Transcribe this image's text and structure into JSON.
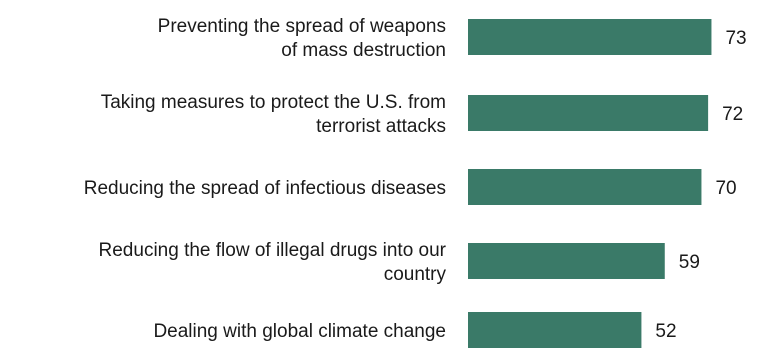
{
  "chart_data": {
    "type": "bar",
    "orientation": "horizontal",
    "categories": [
      [
        "Preventing the spread of weapons",
        "of mass destruction"
      ],
      [
        "Taking measures to protect the U.S. from",
        "terrorist attacks"
      ],
      [
        "Reducing the spread of infectious diseases"
      ],
      [
        "Reducing the flow of illegal drugs into our",
        "country"
      ],
      [
        "Dealing with global climate change"
      ]
    ],
    "values": [
      73,
      72,
      70,
      59,
      52
    ],
    "value_labels": [
      "73",
      "72",
      "70",
      "59",
      "52"
    ],
    "title": "",
    "xlabel": "",
    "ylabel": "",
    "xlim": [
      0,
      100
    ],
    "grid": false,
    "legend": "none",
    "colors": {
      "bar": "#3a7a68",
      "text": "#1a1a1a"
    }
  }
}
